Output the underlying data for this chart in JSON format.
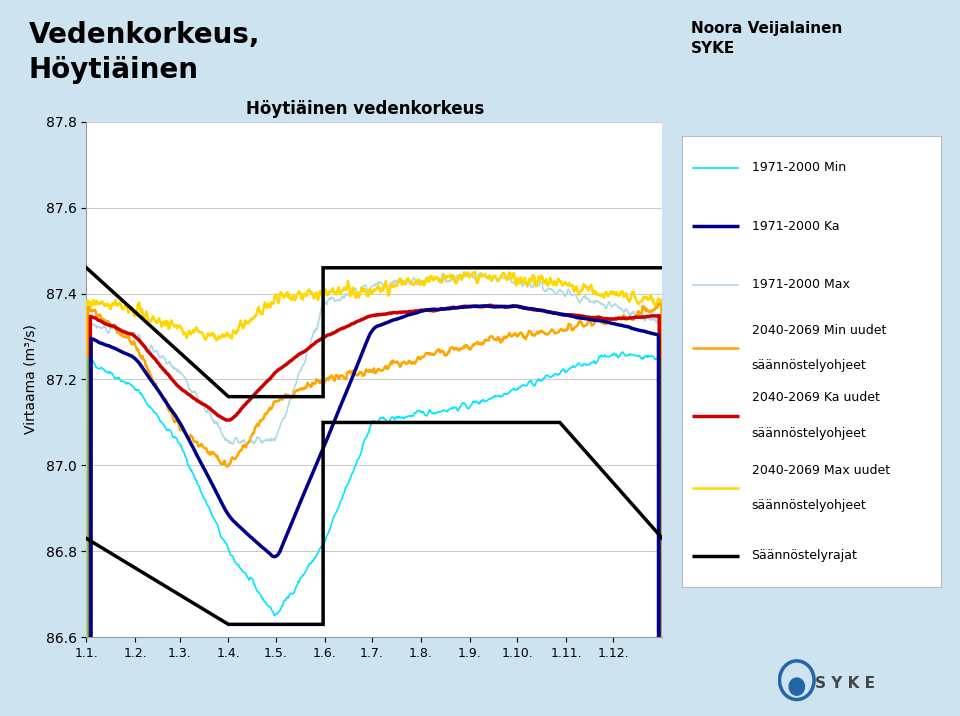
{
  "title_main": "Vedenkorkeus,\nHöytiäinen",
  "title_chart": "Höytiäinen vedenkorkeus",
  "author": "Noora Veijalainen\nSYKE",
  "ylabel": "Virtaama (m³/s)",
  "xlabel_ticks": [
    "1.1.",
    "1.2.",
    "1.3.",
    "1.4.",
    "1.5.",
    "1.6.",
    "1.7.",
    "1.8.",
    "1.9.",
    "1.10.",
    "1.11.",
    "1.12."
  ],
  "ylim": [
    86.6,
    87.8
  ],
  "yticks": [
    86.6,
    86.8,
    87.0,
    87.2,
    87.4,
    87.6,
    87.8
  ],
  "background_outer": "#cde3f0",
  "background_plot": "#ffffff",
  "color_min71": "#00e5ff",
  "color_ka71": "#00008b",
  "color_max71": "#add8e6",
  "color_min40": "#ffa500",
  "color_ka40": "#cc0000",
  "color_max40": "#ffd700",
  "color_reg": "#000000",
  "lw_thin": 1.2,
  "lw_medium": 1.8,
  "lw_thick": 2.5
}
